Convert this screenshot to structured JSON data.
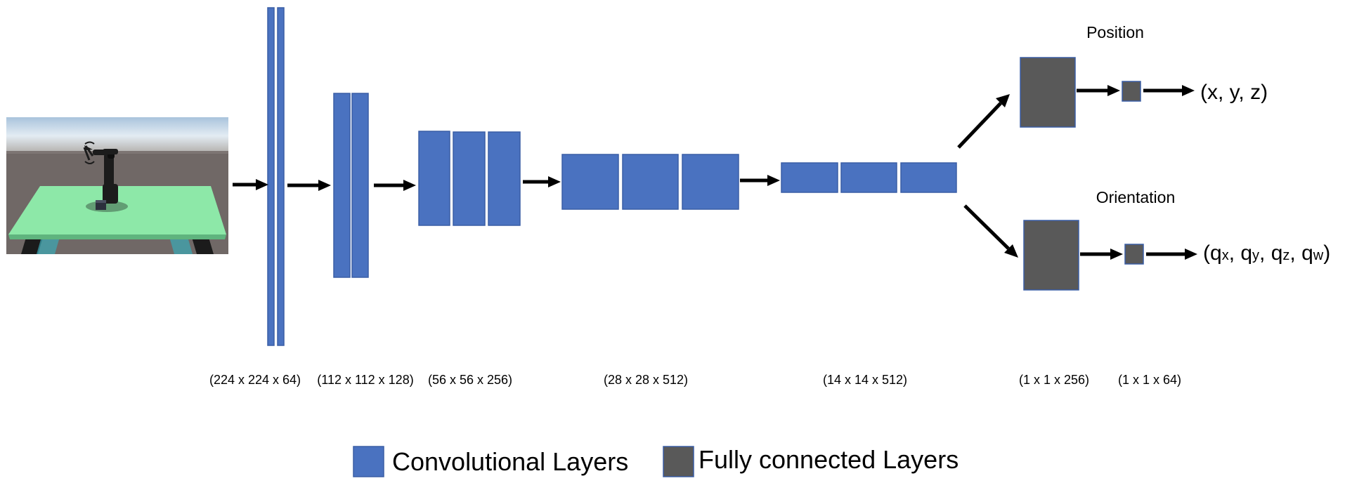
{
  "input_image": {
    "icon": "robot-arm-scene",
    "colors": {
      "sky": "#b9cde0",
      "ground": "#706866",
      "table": "#8de8a8",
      "robot": "#1c1c1c"
    }
  },
  "layer_dimensions": [
    "(224 x 224 x 64)",
    "(112 x 112 x 128)",
    "(56 x 56 x 256)",
    "(28 x 28 x 512)",
    "(14 x 14 x 512)",
    "(1 x 1 x 256)",
    "(1 x 1 x 64)"
  ],
  "heads": {
    "position": {
      "title": "Position",
      "output": "(x, y, z)"
    },
    "orientation": {
      "title": "Orientation",
      "output": {
        "open": "(",
        "q": "q",
        "sub_x": "x",
        "sub_y": "y",
        "sub_z": "z",
        "sub_w": "w",
        "sep": ", ",
        "close": ")"
      }
    }
  },
  "legend": {
    "conv_label": "Convolutional Layers",
    "fc_label": "Fully connected Layers"
  },
  "colors": {
    "conv": "#4a72c0",
    "fc": "#595959",
    "border": "#3a5ea6"
  }
}
